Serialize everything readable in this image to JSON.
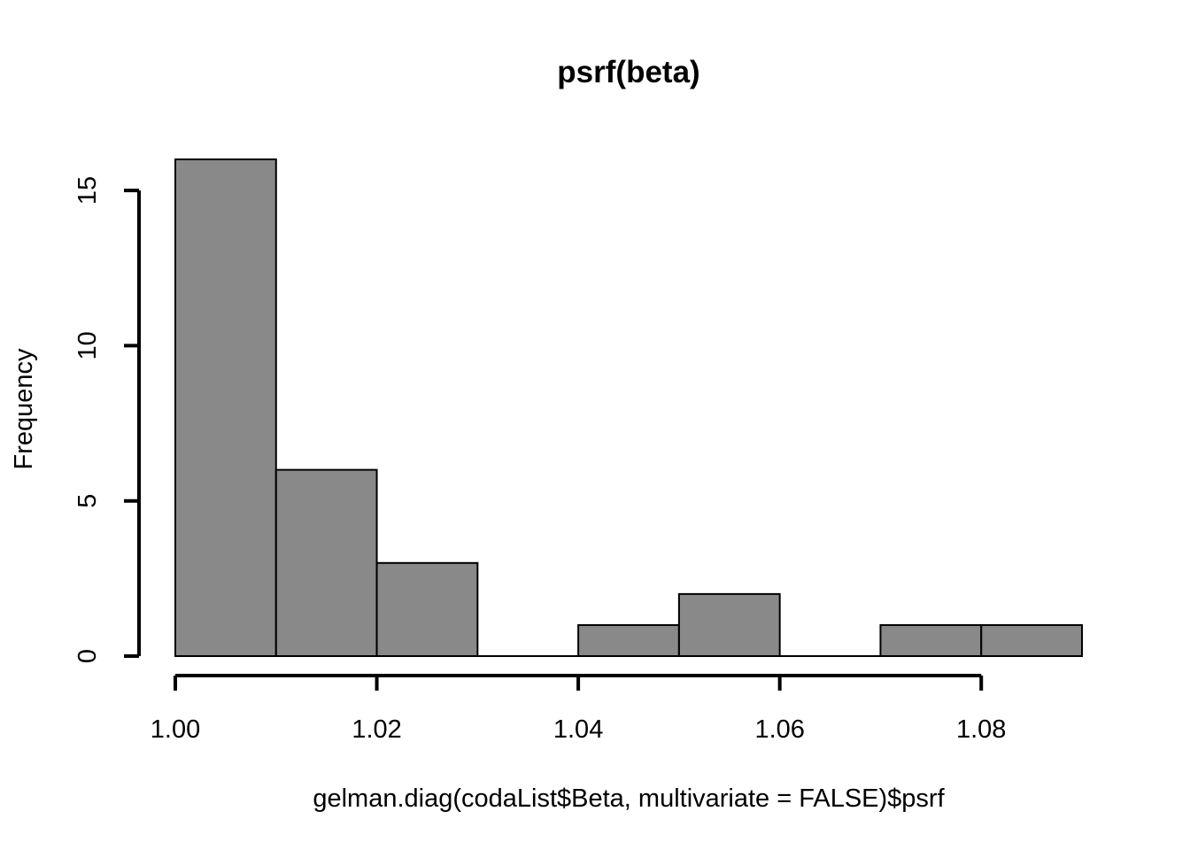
{
  "chart_data": {
    "type": "bar",
    "subtype": "histogram",
    "title": "psrf(beta)",
    "xlabel": "gelman.diag(codaList$Beta, multivariate = FALSE)$psrf",
    "ylabel": "Frequency",
    "bins": [
      {
        "start": 1.0,
        "end": 1.01,
        "count": 16
      },
      {
        "start": 1.01,
        "end": 1.02,
        "count": 6
      },
      {
        "start": 1.02,
        "end": 1.03,
        "count": 3
      },
      {
        "start": 1.03,
        "end": 1.04,
        "count": 0
      },
      {
        "start": 1.04,
        "end": 1.05,
        "count": 1
      },
      {
        "start": 1.05,
        "end": 1.06,
        "count": 2
      },
      {
        "start": 1.06,
        "end": 1.07,
        "count": 0
      },
      {
        "start": 1.07,
        "end": 1.08,
        "count": 1
      },
      {
        "start": 1.08,
        "end": 1.09,
        "count": 1
      }
    ],
    "xlim": [
      1.0,
      1.09
    ],
    "ylim": [
      0,
      16
    ],
    "x_axis_ticks": [
      1.0,
      1.02,
      1.04,
      1.06,
      1.08
    ],
    "x_tick_labels": [
      "1.00",
      "1.02",
      "1.04",
      "1.06",
      "1.08"
    ],
    "x_axis_range": [
      1.0,
      1.08
    ],
    "y_axis_ticks": [
      0,
      5,
      10,
      15
    ],
    "y_tick_labels": [
      "0",
      "5",
      "10",
      "15"
    ],
    "y_axis_range": [
      0,
      15
    ],
    "grid": false,
    "bar_color": "#898989",
    "edge_color": "#000000"
  }
}
